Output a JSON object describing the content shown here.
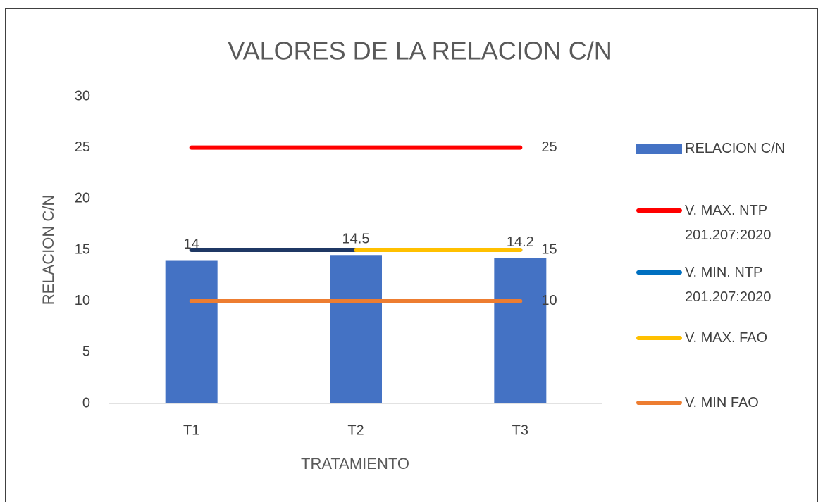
{
  "chart_data": {
    "type": "bar",
    "title": "VALORES DE LA RELACION C/N",
    "x_label": "TRATAMIENTO",
    "y_label": "RELACION C/N",
    "categories": [
      "T1",
      "T2",
      "T3"
    ],
    "ylim": [
      0,
      30
    ],
    "yticks": [
      0,
      5,
      10,
      15,
      20,
      25,
      30
    ],
    "grid": false,
    "legend": "right",
    "series": [
      {
        "name": "RELACION C/N",
        "type": "bar",
        "color": "#4472c4",
        "values": [
          14,
          14.5,
          14.2
        ],
        "data_labels": "all"
      },
      {
        "name": "V. MAX. NTP 201.207:2020",
        "type": "line",
        "color": "#ff0000",
        "values": [
          25,
          25,
          25
        ],
        "data_labels": "last"
      },
      {
        "name": "V. MIN. NTP 201.207:2020",
        "type": "line",
        "color": "#1f3864",
        "legend_color": "#0070c0",
        "values": [
          15,
          15,
          15
        ]
      },
      {
        "name": "V. MAX. FAO",
        "type": "line",
        "color": "#ffc000",
        "values": [
          null,
          15,
          15
        ],
        "data_labels": "last"
      },
      {
        "name": "V. MIN FAO",
        "type": "line",
        "color": "#ed7d31",
        "values": [
          10,
          10,
          10
        ],
        "data_labels": "last"
      }
    ]
  }
}
